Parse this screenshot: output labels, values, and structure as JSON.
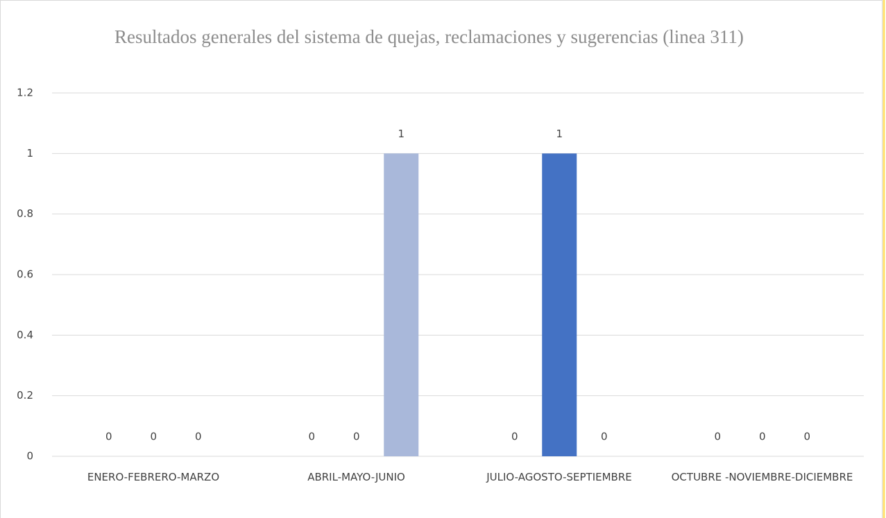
{
  "chart_data": {
    "type": "bar",
    "title": "Resultados generales del sistema de quejas, reclamaciones y sugerencias (linea 311)",
    "categories": [
      "ENERO-FEBRERO-MARZO",
      "ABRIL-MAYO-JUNIO",
      "JULIO-AGOSTO-SEPTIEMBRE",
      "OCTUBRE -NOVIEMBRE-DICIEMBRE"
    ],
    "series": [
      {
        "color": "#264478",
        "values": [
          0,
          0,
          0,
          0
        ]
      },
      {
        "color": "#4472c4",
        "values": [
          0,
          0,
          1,
          0
        ]
      },
      {
        "color": "#a9b8da",
        "values": [
          0,
          1,
          0,
          0
        ]
      }
    ],
    "ylim": [
      0,
      1.2
    ],
    "yticks": [
      0,
      0.2,
      0.4,
      0.6,
      0.8,
      1,
      1.2
    ],
    "grid": true
  }
}
